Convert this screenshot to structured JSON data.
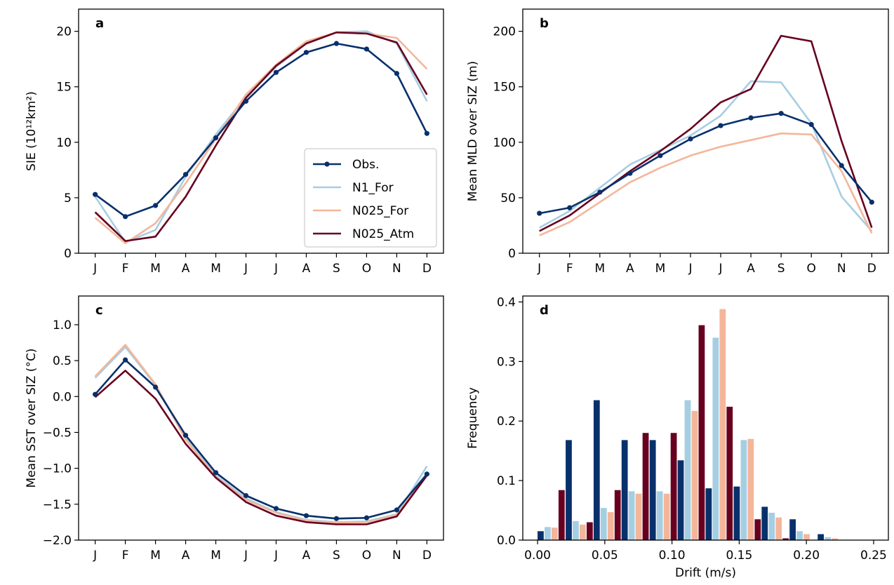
{
  "colors": {
    "Obs.": "#08306b",
    "N1_For": "#a6cee3",
    "N025_For": "#f4b69a",
    "N025_Atm": "#67001f"
  },
  "chart_data": [
    {
      "panel": "a",
      "type": "line",
      "ylabel": "SIE (10¹²km²)",
      "ylim": [
        0,
        22
      ],
      "yticks": [
        0,
        5,
        10,
        15,
        20
      ],
      "categories": [
        "J",
        "F",
        "M",
        "A",
        "M",
        "J",
        "J",
        "A",
        "S",
        "O",
        "N",
        "D"
      ],
      "legend": "lower-right",
      "series": [
        {
          "name": "Obs.",
          "markers": true,
          "values": [
            5.3,
            3.3,
            4.3,
            7.1,
            10.4,
            13.7,
            16.3,
            18.1,
            18.9,
            18.4,
            16.2,
            10.8
          ]
        },
        {
          "name": "N1_For",
          "markers": false,
          "values": [
            5.1,
            1.0,
            2.1,
            6.9,
            10.7,
            14.1,
            16.8,
            18.9,
            19.9,
            20.0,
            18.9,
            13.7
          ]
        },
        {
          "name": "N025_For",
          "markers": false,
          "values": [
            3.2,
            0.9,
            2.7,
            6.3,
            10.3,
            14.3,
            17.0,
            19.1,
            19.9,
            19.8,
            19.4,
            16.6
          ]
        },
        {
          "name": "N025_Atm",
          "markers": false,
          "values": [
            3.7,
            1.1,
            1.5,
            5.1,
            9.7,
            14.0,
            16.9,
            18.9,
            19.9,
            19.8,
            19.0,
            14.3
          ]
        }
      ]
    },
    {
      "panel": "b",
      "type": "line",
      "ylabel": "Mean MLD over SIZ (m)",
      "ylim": [
        0,
        220
      ],
      "yticks": [
        0,
        50,
        100,
        150,
        200
      ],
      "categories": [
        "J",
        "F",
        "M",
        "A",
        "M",
        "J",
        "J",
        "A",
        "S",
        "O",
        "N",
        "D"
      ],
      "series": [
        {
          "name": "Obs.",
          "markers": true,
          "values": [
            36,
            41,
            55,
            72,
            88,
            103,
            115,
            122,
            126,
            116,
            79,
            46
          ]
        },
        {
          "name": "N1_For",
          "markers": false,
          "values": [
            23,
            38,
            59,
            80,
            93,
            106,
            124,
            155,
            154,
            117,
            51,
            20
          ]
        },
        {
          "name": "N025_For",
          "markers": false,
          "values": [
            16,
            28,
            46,
            64,
            77,
            88,
            96,
            102,
            108,
            107,
            74,
            18
          ]
        },
        {
          "name": "N025_Atm",
          "markers": false,
          "values": [
            20,
            34,
            54,
            74,
            92,
            112,
            136,
            148,
            196,
            191,
            101,
            23
          ]
        }
      ]
    },
    {
      "panel": "c",
      "type": "line",
      "ylabel": "Mean SST over SIZ (°C)",
      "ylim": [
        -2.0,
        1.4
      ],
      "yticks": [
        -2.0,
        -1.5,
        -1.0,
        -0.5,
        0.0,
        0.5,
        1.0
      ],
      "categories": [
        "J",
        "F",
        "M",
        "A",
        "M",
        "J",
        "J",
        "A",
        "S",
        "O",
        "N",
        "D"
      ],
      "series": [
        {
          "name": "Obs.",
          "markers": true,
          "values": [
            0.03,
            0.51,
            0.13,
            -0.54,
            -1.06,
            -1.38,
            -1.56,
            -1.66,
            -1.7,
            -1.69,
            -1.58,
            -1.08
          ]
        },
        {
          "name": "N1_For",
          "markers": false,
          "values": [
            0.26,
            0.69,
            0.16,
            -0.58,
            -1.1,
            -1.42,
            -1.61,
            -1.72,
            -1.75,
            -1.74,
            -1.64,
            -0.97
          ]
        },
        {
          "name": "N025_For",
          "markers": false,
          "values": [
            0.28,
            0.72,
            0.17,
            -0.6,
            -1.12,
            -1.44,
            -1.62,
            -1.73,
            -1.76,
            -1.75,
            -1.65,
            -1.09
          ]
        },
        {
          "name": "N025_Atm",
          "markers": false,
          "values": [
            -0.01,
            0.36,
            -0.03,
            -0.66,
            -1.13,
            -1.47,
            -1.66,
            -1.75,
            -1.78,
            -1.78,
            -1.67,
            -1.1
          ]
        }
      ]
    },
    {
      "panel": "d",
      "type": "bar",
      "xlabel": "Drift (m/s)",
      "ylabel": "Frequency",
      "xlim": [
        -0.011,
        0.261
      ],
      "ylim": [
        0,
        0.41
      ],
      "xticks": [
        0.0,
        0.05,
        0.1,
        0.15,
        0.2,
        0.25
      ],
      "yticks": [
        0.0,
        0.1,
        0.2,
        0.3,
        0.4
      ],
      "bin_width": 0.0208,
      "bins": [
        0.0104,
        0.0313,
        0.0521,
        0.0729,
        0.0938,
        0.1146,
        0.1354,
        0.1563,
        0.1771,
        0.1979,
        0.2188,
        0.2396
      ],
      "series": [
        {
          "name": "Obs.",
          "values": [
            0.015,
            0.168,
            0.235,
            0.168,
            0.168,
            0.134,
            0.087,
            0.09,
            0.056,
            0.035,
            0.01,
            0.0
          ]
        },
        {
          "name": "N1_For",
          "values": [
            0.022,
            0.032,
            0.054,
            0.082,
            0.082,
            0.235,
            0.34,
            0.168,
            0.046,
            0.015,
            0.005,
            0.0
          ]
        },
        {
          "name": "N025_For",
          "values": [
            0.021,
            0.026,
            0.047,
            0.078,
            0.078,
            0.217,
            0.388,
            0.17,
            0.038,
            0.01,
            0.003,
            0.0
          ]
        },
        {
          "name": "N025_Atm",
          "values": [
            0.084,
            0.03,
            0.084,
            0.18,
            0.18,
            0.361,
            0.224,
            0.035,
            0.003,
            0.0,
            0.0,
            0.0
          ]
        }
      ]
    }
  ]
}
